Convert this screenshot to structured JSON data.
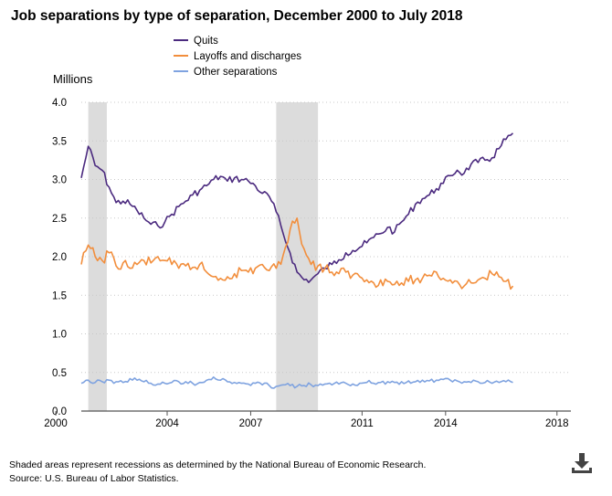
{
  "chart_data": {
    "type": "line",
    "title": "Job separations by type of separation, December 2000 to July 2018",
    "ylabel": "Millions",
    "ylim": [
      0,
      4.0
    ],
    "yticks": [
      "0.0",
      "0.5",
      "1.0",
      "1.5",
      "2.0",
      "2.5",
      "3.0",
      "3.5",
      "4.0"
    ],
    "xlim": [
      "2000-12",
      "2018-07"
    ],
    "xticks": [
      "2000",
      "2004",
      "2007",
      "2011",
      "2014",
      "2018"
    ],
    "grid": "horizontal dotted",
    "legend_placement": "top",
    "recessions": [
      {
        "start": "2001-03",
        "end": "2001-11"
      },
      {
        "start": "2007-12",
        "end": "2009-06"
      }
    ],
    "series": [
      {
        "name": "Quits",
        "color": "#4b2a7f",
        "start": "2000-12",
        "frequency": "quarterly",
        "values": [
          3.02,
          3.43,
          3.18,
          3.12,
          2.9,
          2.7,
          2.72,
          2.68,
          2.6,
          2.5,
          2.42,
          2.4,
          2.45,
          2.55,
          2.65,
          2.72,
          2.8,
          2.86,
          2.92,
          3.0,
          3.04,
          2.98,
          3.02,
          3.0,
          2.98,
          2.92,
          2.82,
          2.78,
          2.58,
          2.3,
          2.05,
          1.8,
          1.7,
          1.7,
          1.78,
          1.85,
          1.9,
          1.96,
          2.05,
          2.08,
          2.12,
          2.18,
          2.25,
          2.3,
          2.38,
          2.32,
          2.45,
          2.55,
          2.68,
          2.75,
          2.8,
          2.88,
          2.95,
          3.05,
          3.12,
          3.08,
          3.2,
          3.22,
          3.25,
          3.28,
          3.4,
          3.52,
          3.6
        ]
      },
      {
        "name": "Layoffs and discharges",
        "color": "#f28e3c",
        "start": "2000-12",
        "frequency": "quarterly",
        "values": [
          1.9,
          2.15,
          2.0,
          1.95,
          2.05,
          1.88,
          1.92,
          1.85,
          1.9,
          1.95,
          1.92,
          2.0,
          1.95,
          1.9,
          1.85,
          1.88,
          1.86,
          1.9,
          1.8,
          1.74,
          1.72,
          1.74,
          1.78,
          1.82,
          1.8,
          1.85,
          1.9,
          1.82,
          1.85,
          2.02,
          2.35,
          2.5,
          2.1,
          1.9,
          1.88,
          1.85,
          1.8,
          1.78,
          1.8,
          1.76,
          1.74,
          1.7,
          1.66,
          1.7,
          1.68,
          1.64,
          1.66,
          1.68,
          1.7,
          1.72,
          1.76,
          1.8,
          1.72,
          1.7,
          1.68,
          1.62,
          1.66,
          1.7,
          1.72,
          1.78,
          1.74,
          1.68,
          1.62
        ]
      },
      {
        "name": "Other separations",
        "color": "#7fa3e0",
        "start": "2000-12",
        "frequency": "quarterly",
        "values": [
          0.36,
          0.4,
          0.37,
          0.38,
          0.4,
          0.38,
          0.37,
          0.42,
          0.4,
          0.38,
          0.36,
          0.35,
          0.36,
          0.37,
          0.38,
          0.38,
          0.36,
          0.37,
          0.4,
          0.44,
          0.4,
          0.38,
          0.37,
          0.36,
          0.35,
          0.36,
          0.34,
          0.33,
          0.32,
          0.34,
          0.33,
          0.32,
          0.33,
          0.34,
          0.33,
          0.35,
          0.34,
          0.35,
          0.36,
          0.35,
          0.36,
          0.37,
          0.36,
          0.37,
          0.38,
          0.37,
          0.38,
          0.39,
          0.38,
          0.4,
          0.39,
          0.4,
          0.41,
          0.4,
          0.39,
          0.38,
          0.37,
          0.38,
          0.37,
          0.36,
          0.37,
          0.38,
          0.37
        ]
      }
    ]
  },
  "footnote": {
    "line1": "Shaded areas represent recessions as determined by the National Bureau of Economic Research.",
    "line2": "Source: U.S. Bureau of Labor Statistics."
  },
  "download_icon": "download-icon"
}
